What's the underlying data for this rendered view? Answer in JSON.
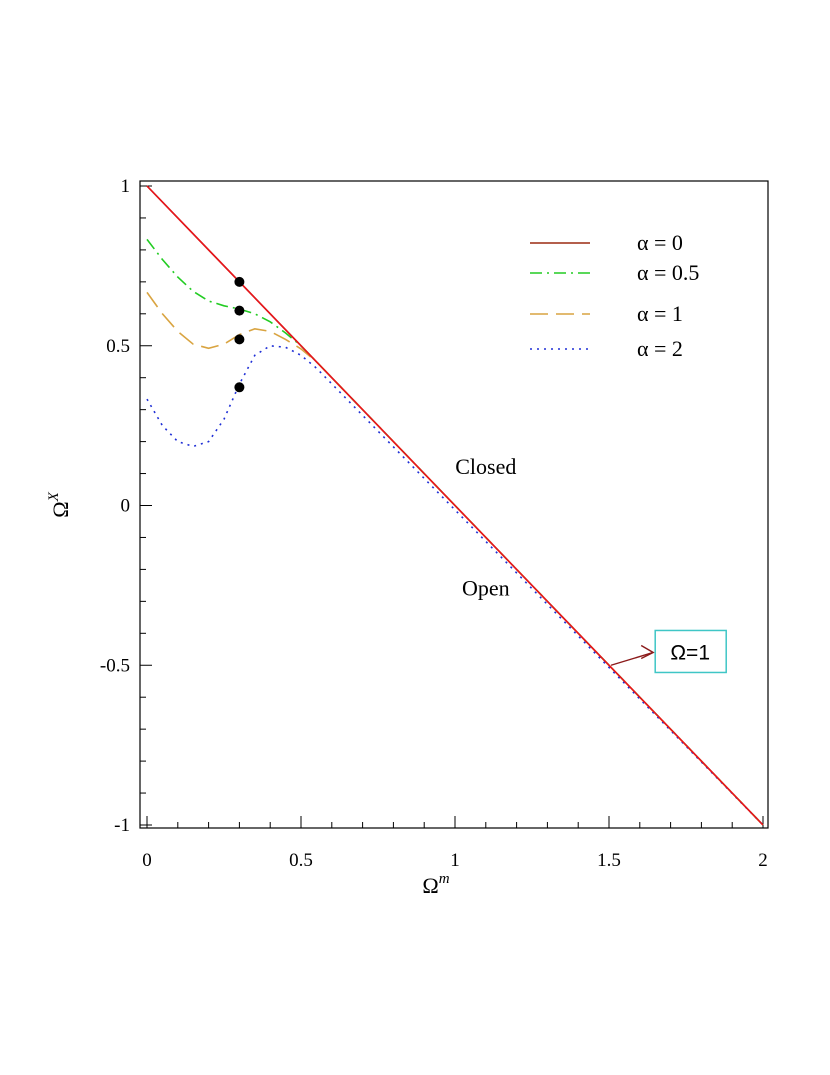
{
  "chart_data": {
    "type": "line",
    "xlabel": "Ω",
    "xlabel_sup": "m",
    "ylabel": "Ω",
    "ylabel_sup": "X",
    "xlim": [
      0,
      2
    ],
    "ylim": [
      -1,
      1
    ],
    "x_ticks": [
      {
        "value": 0,
        "label": "0"
      },
      {
        "value": 0.5,
        "label": "0.5"
      },
      {
        "value": 1,
        "label": "1"
      },
      {
        "value": 1.5,
        "label": "1.5"
      },
      {
        "value": 2,
        "label": "2"
      }
    ],
    "y_ticks": [
      {
        "value": 1,
        "label": "1"
      },
      {
        "value": 0.5,
        "label": "0.5"
      },
      {
        "value": 0,
        "label": "0"
      },
      {
        "value": -0.5,
        "label": "-0.5"
      },
      {
        "value": -1,
        "label": "-1"
      }
    ],
    "grid": false,
    "legend_position": "top-right",
    "series": [
      {
        "name": "α = 0",
        "color": "#9b2a10",
        "style": "solid",
        "x": [
          0,
          2
        ],
        "y": [
          1,
          -1
        ]
      },
      {
        "name": "α = 0.5",
        "color": "#22cc22",
        "style": "dashdot",
        "x": [
          0,
          0.05,
          0.1,
          0.15,
          0.2,
          0.25,
          0.3,
          0.35,
          0.4,
          0.45,
          0.5,
          0.55,
          2
        ],
        "y": [
          0.833,
          0.77,
          0.715,
          0.67,
          0.64,
          0.625,
          0.615,
          0.6,
          0.575,
          0.54,
          0.5,
          0.45,
          -1
        ]
      },
      {
        "name": "α = 1",
        "color": "#d9a441",
        "style": "dash",
        "x": [
          0,
          0.05,
          0.1,
          0.15,
          0.2,
          0.25,
          0.3,
          0.35,
          0.4,
          0.45,
          0.5,
          0.55,
          2
        ],
        "y": [
          0.667,
          0.6,
          0.545,
          0.505,
          0.492,
          0.505,
          0.535,
          0.553,
          0.545,
          0.52,
          0.49,
          0.45,
          -1
        ]
      },
      {
        "name": "α = 2",
        "color": "#1f2fd6",
        "style": "dot",
        "x": [
          0,
          0.05,
          0.1,
          0.15,
          0.2,
          0.25,
          0.3,
          0.35,
          0.4,
          0.45,
          0.5,
          0.55,
          2
        ],
        "y": [
          0.333,
          0.25,
          0.2,
          0.185,
          0.2,
          0.27,
          0.38,
          0.47,
          0.5,
          0.495,
          0.47,
          0.43,
          -1
        ]
      }
    ],
    "reference_line": {
      "color": "#e8141b",
      "x": [
        0,
        2
      ],
      "y": [
        1,
        -1
      ]
    },
    "points": [
      {
        "x": 0.3,
        "y": 0.7
      },
      {
        "x": 0.3,
        "y": 0.61
      },
      {
        "x": 0.3,
        "y": 0.52
      },
      {
        "x": 0.3,
        "y": 0.37
      }
    ],
    "annotations": [
      {
        "text": "Closed",
        "x": 1.1,
        "y": 0.12
      },
      {
        "text": "Open",
        "x": 1.1,
        "y": -0.26
      }
    ],
    "arrow_box": {
      "text": "Ω=1",
      "box_color": "#3fc6c6",
      "arrow_color": "#8b1a1a",
      "arrow_from": {
        "x": 1.5,
        "y": -0.5
      },
      "box_at": {
        "x": 1.65,
        "y": -0.46
      }
    }
  }
}
